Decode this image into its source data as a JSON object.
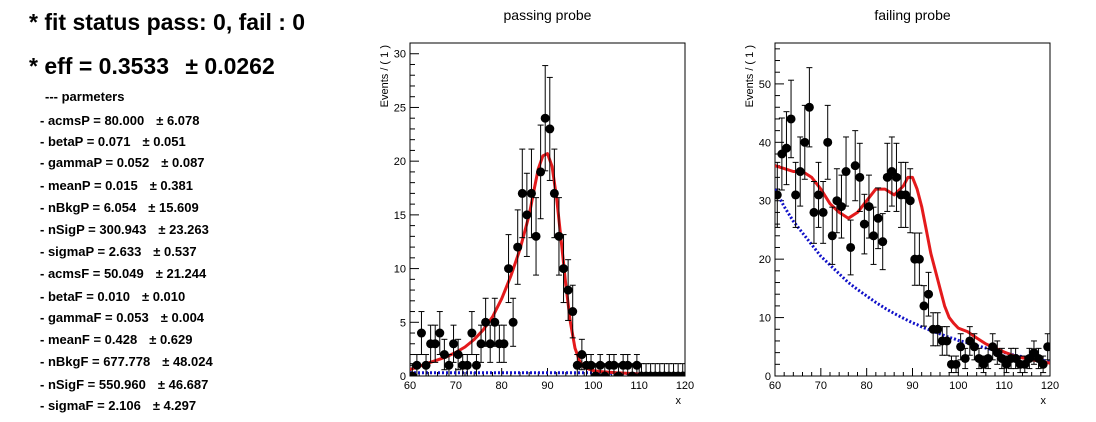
{
  "stats": {
    "fit_status": "* fit status pass: 0, fail : 0",
    "eff": "* eff = 0.3533",
    "eff_err": "± 0.0262",
    "header": "--- parmeters",
    "params": [
      {
        "label": "- acmsP = 80.000",
        "err": "± 6.078"
      },
      {
        "label": "- betaP = 0.071",
        "err": "± 0.051"
      },
      {
        "label": "- gammaP = 0.052",
        "err": "± 0.087"
      },
      {
        "label": "- meanP = 0.015",
        "err": "± 0.381"
      },
      {
        "label": "- nBkgP = 6.054",
        "err": "± 15.609"
      },
      {
        "label": "- nSigP = 300.943",
        "err": "± 23.263"
      },
      {
        "label": "- sigmaP = 2.633",
        "err": "± 0.537"
      },
      {
        "label": "- acmsF = 50.049",
        "err": "± 21.244"
      },
      {
        "label": "- betaF = 0.010",
        "err": "± 0.010"
      },
      {
        "label": "- gammaF = 0.053",
        "err": "± 0.004"
      },
      {
        "label": "- meanF = 0.428",
        "err": "± 0.629"
      },
      {
        "label": "- nBkgF = 677.778",
        "err": "± 48.024"
      },
      {
        "label": "- nSigF = 550.960",
        "err": "± 46.687"
      },
      {
        "label": "- sigmaF = 2.106",
        "err": "± 4.297"
      }
    ]
  },
  "chart_data": [
    {
      "type": "scatter",
      "title": "passing probe",
      "xlabel": "x",
      "ylabel": "Events / ( 1 )",
      "xlim": [
        60,
        120
      ],
      "ylim": [
        0,
        31
      ],
      "xticks": [
        60,
        70,
        80,
        90,
        100,
        110,
        120
      ],
      "yticks": [
        0,
        5,
        10,
        15,
        20,
        25,
        30
      ],
      "colors": {
        "data": "#000000",
        "total_fit": "#e41a1c",
        "background": "#1010c8"
      },
      "data_points": {
        "x": [
          60.5,
          61.5,
          62.5,
          63.5,
          64.5,
          65.5,
          66.5,
          67.5,
          68.5,
          69.5,
          70.5,
          71.5,
          72.5,
          73.5,
          74.5,
          75.5,
          76.5,
          77.5,
          78.5,
          79.5,
          80.5,
          81.5,
          82.5,
          83.5,
          84.5,
          85.5,
          86.5,
          87.5,
          88.5,
          89.5,
          90.5,
          91.5,
          92.5,
          93.5,
          94.5,
          95.5,
          96.5,
          97.5,
          98.5,
          99.5,
          100.5,
          101.5,
          102.5,
          103.5,
          104.5,
          105.5,
          106.5,
          107.5,
          108.5,
          109.5,
          110.5,
          111.5,
          112.5,
          113.5,
          114.5,
          115.5,
          116.5,
          117.5,
          118.5,
          119.5
        ],
        "y": [
          0,
          1,
          4,
          1,
          3,
          3,
          4,
          2,
          1,
          3,
          2,
          1,
          1,
          4,
          1,
          3,
          5,
          3,
          5,
          3,
          3,
          10,
          5,
          12,
          17,
          15,
          17,
          13,
          19,
          24,
          23,
          17,
          13,
          10,
          8,
          6,
          1,
          2,
          1,
          1,
          0,
          1,
          0,
          1,
          1,
          0,
          1,
          1,
          0,
          1,
          0,
          0,
          0,
          0,
          0,
          0,
          0,
          0,
          0,
          0
        ]
      },
      "curves": {
        "x": [
          60,
          62,
          64,
          66,
          68,
          70,
          72,
          74,
          76,
          78,
          80,
          82,
          84,
          86,
          87,
          88,
          89,
          90,
          91,
          92,
          93,
          94,
          95,
          96,
          97,
          98,
          100,
          102,
          105,
          110,
          115,
          120
        ],
        "total_fit": [
          0.6,
          0.9,
          1.2,
          1.5,
          1.8,
          2.2,
          2.7,
          3.4,
          4.3,
          5.5,
          7.2,
          9.3,
          11.8,
          15.0,
          17.2,
          19.3,
          20.5,
          20.7,
          19.5,
          16.5,
          12.5,
          8.5,
          5.0,
          2.6,
          1.4,
          0.8,
          0.5,
          0.4,
          0.3,
          0.2,
          0.15,
          0.1
        ],
        "background": [
          0.3,
          0.3,
          0.3,
          0.3,
          0.3,
          0.3,
          0.3,
          0.3,
          0.3,
          0.3,
          0.3,
          0.3,
          0.3,
          0.3,
          0.3,
          0.3,
          0.3,
          0.3,
          0.3,
          0.3,
          0.3,
          0.3,
          0.3,
          0.3,
          0.3,
          0.3,
          0.3,
          0.25,
          0.25,
          0.2,
          0.15,
          0.1
        ]
      }
    },
    {
      "type": "scatter",
      "title": "failing probe",
      "xlabel": "x",
      "ylabel": "Events / ( 1 )",
      "xlim": [
        60,
        120
      ],
      "ylim": [
        0,
        57
      ],
      "xticks": [
        60,
        70,
        80,
        90,
        100,
        110,
        120
      ],
      "yticks": [
        0,
        10,
        20,
        30,
        40,
        50
      ],
      "colors": {
        "data": "#000000",
        "total_fit": "#e41a1c",
        "background": "#1010c8"
      },
      "data_points": {
        "x": [
          60.5,
          61.5,
          62.5,
          63.5,
          64.5,
          65.5,
          66.5,
          67.5,
          68.5,
          69.5,
          70.5,
          71.5,
          72.5,
          73.5,
          74.5,
          75.5,
          76.5,
          77.5,
          78.5,
          79.5,
          80.5,
          81.5,
          82.5,
          83.5,
          84.5,
          85.5,
          86.5,
          87.5,
          88.5,
          89.5,
          90.5,
          91.5,
          92.5,
          93.5,
          94.5,
          95.5,
          96.5,
          97.5,
          98.5,
          99.5,
          100.5,
          101.5,
          102.5,
          103.5,
          104.5,
          105.5,
          106.5,
          107.5,
          108.5,
          109.5,
          110.5,
          111.5,
          112.5,
          113.5,
          114.5,
          115.5,
          116.5,
          117.5,
          118.5,
          119.5
        ],
        "y": [
          31,
          38,
          39,
          44,
          31,
          35,
          40,
          46,
          28,
          31,
          28,
          40,
          24,
          30,
          29,
          35,
          22,
          36,
          34,
          26,
          29,
          24,
          27,
          23,
          34,
          35,
          34,
          31,
          31,
          30,
          20,
          20,
          12,
          14,
          8,
          8,
          6,
          6,
          2,
          2,
          5,
          3,
          6,
          5,
          3,
          2,
          3,
          5,
          4,
          3,
          2,
          3,
          3,
          2,
          2,
          3,
          4,
          3,
          2,
          5
        ]
      },
      "curves": {
        "x": [
          60,
          62,
          64,
          66,
          68,
          70,
          72,
          74,
          76,
          78,
          80,
          82,
          84,
          86,
          88,
          89,
          90,
          91,
          92,
          93,
          94,
          95,
          96,
          97,
          98,
          99,
          100,
          102,
          104,
          106,
          108,
          110,
          112,
          114,
          116,
          118,
          120
        ],
        "total_fit": [
          36,
          35.5,
          35,
          35,
          34,
          32,
          29.5,
          28,
          27,
          28,
          30,
          32,
          32,
          31,
          32.5,
          34,
          34,
          32,
          29,
          25,
          21,
          18,
          15,
          12,
          10,
          9,
          8.2,
          7.6,
          6.5,
          5.5,
          4.8,
          4.1,
          3.5,
          3.1,
          2.8,
          2.5,
          2.2
        ],
        "background": [
          32,
          29,
          26.5,
          24.5,
          22.5,
          20.5,
          19,
          17.5,
          16,
          14.8,
          13.7,
          12.6,
          11.6,
          10.7,
          9.9,
          9.5,
          9.1,
          8.8,
          8.4,
          8.1,
          7.8,
          7.5,
          7.2,
          6.9,
          6.6,
          6.4,
          6.1,
          5.7,
          5.2,
          4.8,
          4.4,
          4.0,
          3.6,
          3.3,
          3.0,
          2.7,
          2.5
        ]
      }
    }
  ]
}
